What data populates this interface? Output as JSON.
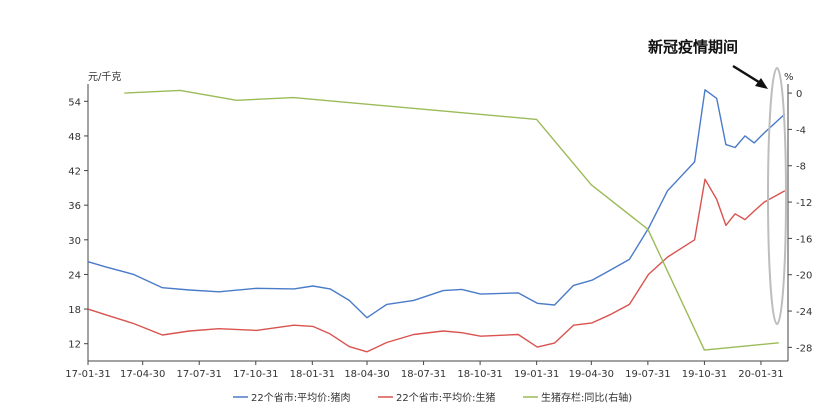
{
  "chart_data": {
    "type": "line",
    "annotation": "新冠疫情期间",
    "left_axis": {
      "unit": "元/千克",
      "ticks": [
        12,
        18,
        24,
        30,
        36,
        42,
        48,
        54
      ],
      "range": [
        9,
        57
      ]
    },
    "right_axis": {
      "unit": "%",
      "ticks": [
        0,
        -4,
        -8,
        -12,
        -16,
        -20,
        -24,
        -28
      ],
      "range": [
        -29.5,
        1
      ]
    },
    "x_axis": {
      "tick_labels": [
        "17-01-31",
        "17-04-30",
        "17-07-31",
        "17-10-31",
        "18-01-31",
        "18-04-30",
        "18-07-31",
        "18-10-31",
        "19-01-31",
        "19-04-30",
        "19-07-31",
        "19-10-31",
        "20-01-31"
      ],
      "range": [
        "2017-01-31",
        "2020-03-15"
      ]
    },
    "legend": {
      "position": "bottom",
      "entries": [
        "22个省市:平均价:猪肉",
        "22个省市:平均价:生猪",
        "生猪存栏:同比(右轴)"
      ]
    },
    "colors": {
      "pork": "#4a7bc8",
      "hog": "#d9534f",
      "inventory": "#9bbb59"
    },
    "series": [
      {
        "name": "22个省市:平均价:猪肉",
        "axis": "left",
        "x": [
          "2017-01-31",
          "2017-03-01",
          "2017-04-15",
          "2017-06-01",
          "2017-07-15",
          "2017-09-01",
          "2017-11-01",
          "2018-01-01",
          "2018-02-01",
          "2018-03-01",
          "2018-04-01",
          "2018-04-30",
          "2018-06-01",
          "2018-07-15",
          "2018-09-01",
          "2018-10-01",
          "2018-11-01",
          "2019-01-01",
          "2019-02-01",
          "2019-03-01",
          "2019-04-01",
          "2019-05-01",
          "2019-06-01",
          "2019-07-01",
          "2019-08-01",
          "2019-09-01",
          "2019-10-15",
          "2019-11-01",
          "2019-11-20",
          "2019-12-05",
          "2019-12-20",
          "2020-01-05",
          "2020-01-20",
          "2020-02-05",
          "2020-03-10"
        ],
        "y": [
          26.2,
          25.3,
          24.0,
          21.7,
          21.3,
          21.0,
          21.6,
          21.5,
          22.0,
          21.5,
          19.5,
          16.5,
          18.8,
          19.5,
          21.2,
          21.4,
          20.6,
          20.8,
          19.0,
          18.7,
          22.1,
          23.0,
          24.8,
          26.6,
          32.0,
          38.5,
          43.5,
          56.0,
          54.5,
          46.5,
          46.0,
          48.0,
          46.8,
          48.5,
          51.8
        ]
      },
      {
        "name": "22个省市:平均价:生猪",
        "axis": "left",
        "x": [
          "2017-01-31",
          "2017-03-01",
          "2017-04-15",
          "2017-06-01",
          "2017-07-15",
          "2017-09-01",
          "2017-11-01",
          "2018-01-01",
          "2018-02-01",
          "2018-03-01",
          "2018-04-01",
          "2018-04-30",
          "2018-06-01",
          "2018-07-15",
          "2018-09-01",
          "2018-10-01",
          "2018-11-01",
          "2019-01-01",
          "2019-02-01",
          "2019-03-01",
          "2019-04-01",
          "2019-05-01",
          "2019-06-01",
          "2019-07-01",
          "2019-08-01",
          "2019-09-01",
          "2019-10-15",
          "2019-11-01",
          "2019-11-20",
          "2019-12-05",
          "2019-12-20",
          "2020-01-05",
          "2020-01-20",
          "2020-02-05",
          "2020-03-10"
        ],
        "y": [
          18.0,
          17.0,
          15.5,
          13.5,
          14.2,
          14.6,
          14.3,
          15.2,
          15.0,
          13.7,
          11.5,
          10.6,
          12.2,
          13.6,
          14.2,
          13.9,
          13.3,
          13.6,
          11.4,
          12.1,
          15.2,
          15.6,
          17.1,
          18.8,
          24.0,
          27.0,
          30.0,
          40.5,
          37.0,
          32.5,
          34.5,
          33.5,
          35.0,
          36.5,
          38.5
        ]
      },
      {
        "name": "生猪存栏:同比(右轴)",
        "axis": "right",
        "x": [
          "2017-03-31",
          "2017-06-30",
          "2017-09-30",
          "2017-12-31",
          "2019-01-31",
          "2019-04-30",
          "2019-07-31",
          "2019-10-31",
          "2020-02-29"
        ],
        "y": [
          0.0,
          0.3,
          -0.8,
          -0.5,
          -2.9,
          -10.1,
          -15.0,
          -28.3,
          -27.5
        ]
      }
    ]
  }
}
